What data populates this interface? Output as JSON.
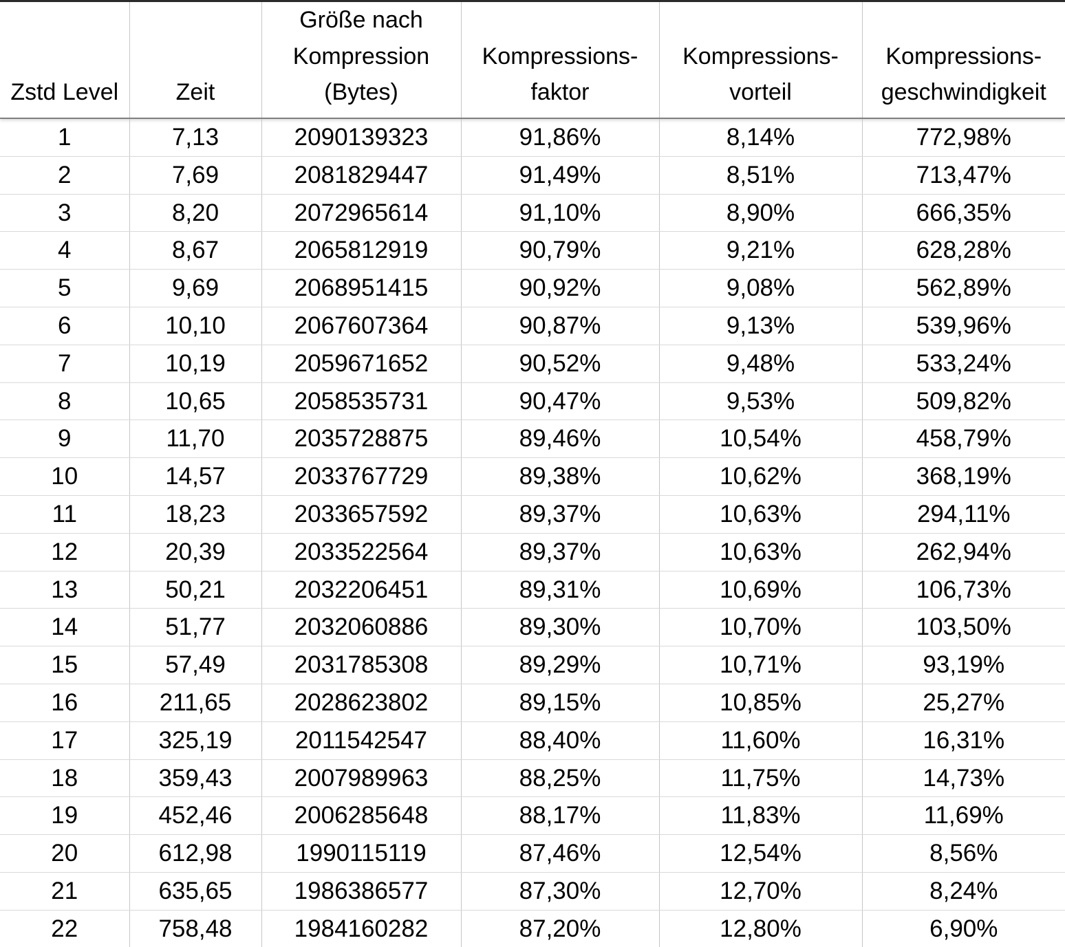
{
  "table": {
    "columns": [
      {
        "id": "level",
        "label": "Zstd Level"
      },
      {
        "id": "zeit",
        "label": "Zeit"
      },
      {
        "id": "groesse",
        "label": "Größe nach\nKompression\n(Bytes)"
      },
      {
        "id": "faktor",
        "label": "Kompressions-\nfaktor"
      },
      {
        "id": "vorteil",
        "label": "Kompressions-\nvorteil"
      },
      {
        "id": "geschwindigkeit",
        "label": "Kompressions-\ngeschwindigkeit"
      }
    ],
    "rows": [
      [
        "1",
        "7,13",
        "2090139323",
        "91,86%",
        "8,14%",
        "772,98%"
      ],
      [
        "2",
        "7,69",
        "2081829447",
        "91,49%",
        "8,51%",
        "713,47%"
      ],
      [
        "3",
        "8,20",
        "2072965614",
        "91,10%",
        "8,90%",
        "666,35%"
      ],
      [
        "4",
        "8,67",
        "2065812919",
        "90,79%",
        "9,21%",
        "628,28%"
      ],
      [
        "5",
        "9,69",
        "2068951415",
        "90,92%",
        "9,08%",
        "562,89%"
      ],
      [
        "6",
        "10,10",
        "2067607364",
        "90,87%",
        "9,13%",
        "539,96%"
      ],
      [
        "7",
        "10,19",
        "2059671652",
        "90,52%",
        "9,48%",
        "533,24%"
      ],
      [
        "8",
        "10,65",
        "2058535731",
        "90,47%",
        "9,53%",
        "509,82%"
      ],
      [
        "9",
        "11,70",
        "2035728875",
        "89,46%",
        "10,54%",
        "458,79%"
      ],
      [
        "10",
        "14,57",
        "2033767729",
        "89,38%",
        "10,62%",
        "368,19%"
      ],
      [
        "11",
        "18,23",
        "2033657592",
        "89,37%",
        "10,63%",
        "294,11%"
      ],
      [
        "12",
        "20,39",
        "2033522564",
        "89,37%",
        "10,63%",
        "262,94%"
      ],
      [
        "13",
        "50,21",
        "2032206451",
        "89,31%",
        "10,69%",
        "106,73%"
      ],
      [
        "14",
        "51,77",
        "2032060886",
        "89,30%",
        "10,70%",
        "103,50%"
      ],
      [
        "15",
        "57,49",
        "2031785308",
        "89,29%",
        "10,71%",
        "93,19%"
      ],
      [
        "16",
        "211,65",
        "2028623802",
        "89,15%",
        "10,85%",
        "25,27%"
      ],
      [
        "17",
        "325,19",
        "2011542547",
        "88,40%",
        "11,60%",
        "16,31%"
      ],
      [
        "18",
        "359,43",
        "2007989963",
        "88,25%",
        "11,75%",
        "14,73%"
      ],
      [
        "19",
        "452,46",
        "2006285648",
        "88,17%",
        "11,83%",
        "11,69%"
      ],
      [
        "20",
        "612,98",
        "1990115119",
        "87,46%",
        "12,54%",
        "8,56%"
      ],
      [
        "21",
        "635,65",
        "1986386577",
        "87,30%",
        "12,70%",
        "8,24%"
      ],
      [
        "22",
        "758,48",
        "1984160282",
        "87,20%",
        "12,80%",
        "6,90%"
      ]
    ]
  },
  "chart_data": {
    "type": "table",
    "title": "",
    "columns": [
      "Zstd Level",
      "Zeit",
      "Größe nach Kompression (Bytes)",
      "Kompressionsfaktor (%)",
      "Kompressionsvorteil (%)",
      "Kompressionsgeschwindigkeit (%)"
    ],
    "number_format": "de-DE decimal comma",
    "rows": [
      [
        1,
        7.13,
        2090139323,
        91.86,
        8.14,
        772.98
      ],
      [
        2,
        7.69,
        2081829447,
        91.49,
        8.51,
        713.47
      ],
      [
        3,
        8.2,
        2072965614,
        91.1,
        8.9,
        666.35
      ],
      [
        4,
        8.67,
        2065812919,
        90.79,
        9.21,
        628.28
      ],
      [
        5,
        9.69,
        2068951415,
        90.92,
        9.08,
        562.89
      ],
      [
        6,
        10.1,
        2067607364,
        90.87,
        9.13,
        539.96
      ],
      [
        7,
        10.19,
        2059671652,
        90.52,
        9.48,
        533.24
      ],
      [
        8,
        10.65,
        2058535731,
        90.47,
        9.53,
        509.82
      ],
      [
        9,
        11.7,
        2035728875,
        89.46,
        10.54,
        458.79
      ],
      [
        10,
        14.57,
        2033767729,
        89.38,
        10.62,
        368.19
      ],
      [
        11,
        18.23,
        2033657592,
        89.37,
        10.63,
        294.11
      ],
      [
        12,
        20.39,
        2033522564,
        89.37,
        10.63,
        262.94
      ],
      [
        13,
        50.21,
        2032206451,
        89.31,
        10.69,
        106.73
      ],
      [
        14,
        51.77,
        2032060886,
        89.3,
        10.7,
        103.5
      ],
      [
        15,
        57.49,
        2031785308,
        89.29,
        10.71,
        93.19
      ],
      [
        16,
        211.65,
        2028623802,
        89.15,
        10.85,
        25.27
      ],
      [
        17,
        325.19,
        2011542547,
        88.4,
        11.6,
        16.31
      ],
      [
        18,
        359.43,
        2007989963,
        88.25,
        11.75,
        14.73
      ],
      [
        19,
        452.46,
        2006285648,
        88.17,
        11.83,
        11.69
      ],
      [
        20,
        612.98,
        1990115119,
        87.46,
        12.54,
        8.56
      ],
      [
        21,
        635.65,
        1986386577,
        87.3,
        12.7,
        8.24
      ],
      [
        22,
        758.48,
        1984160282,
        87.2,
        12.8,
        6.9
      ]
    ]
  }
}
